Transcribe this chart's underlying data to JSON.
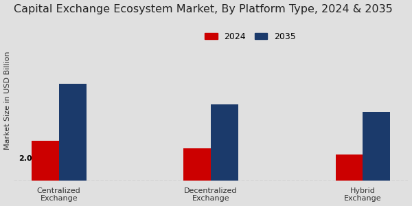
{
  "title": "Capital Exchange Ecosystem Market, By Platform Type, 2024 & 2035",
  "ylabel": "Market Size in USD Billion",
  "categories": [
    "Centralized\nExchange",
    "Decentralized\nExchange",
    "Hybrid\nExchange"
  ],
  "series": {
    "2024": [
      2.0,
      1.6,
      1.3
    ],
    "2035": [
      4.8,
      3.8,
      3.4
    ]
  },
  "colors": {
    "2024": "#cc0000",
    "2035": "#1b3a6b"
  },
  "bar_width": 0.18,
  "annotation": "2.0",
  "ylim": [
    0,
    8
  ],
  "background_color": "#e0e0e0",
  "title_fontsize": 11.5,
  "legend_fontsize": 9,
  "axis_label_fontsize": 8,
  "tick_fontsize": 8
}
